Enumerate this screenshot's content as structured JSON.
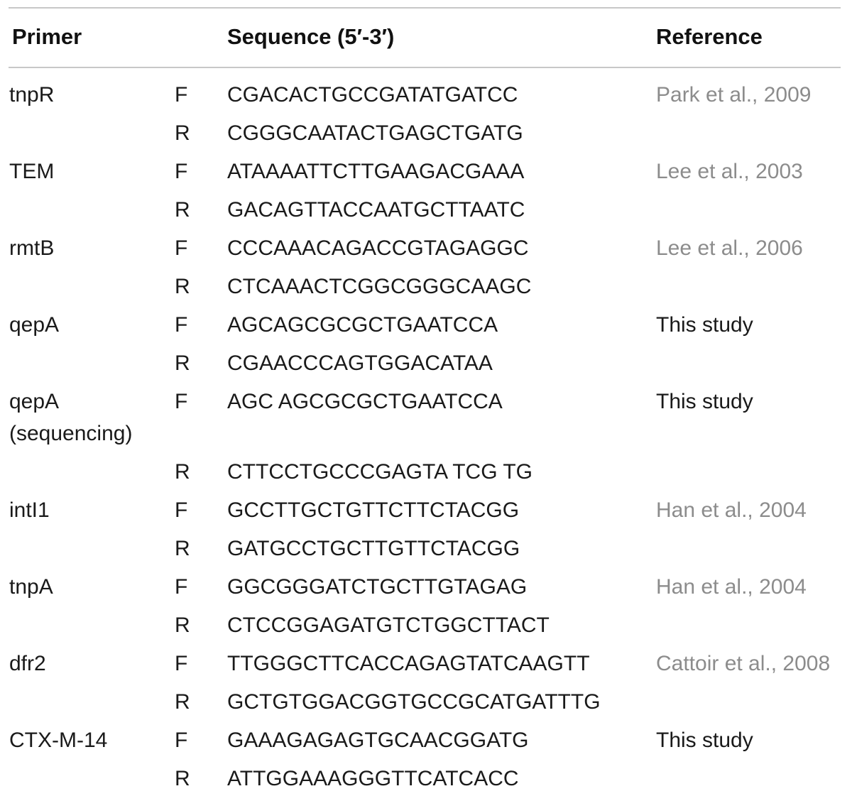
{
  "table": {
    "headers": {
      "primer": "Primer",
      "sequence": "Sequence (5′-3′)",
      "reference": "Reference"
    },
    "rows": [
      {
        "primer": "tnpR",
        "dir": "F",
        "seq": "CGACACTGCCGATATGATCC",
        "ref": "Park et al., 2009",
        "ref_is_citation": true
      },
      {
        "primer": "",
        "dir": "R",
        "seq": "CGGGCAATACTGAGCTGATG",
        "ref": "",
        "ref_is_citation": false
      },
      {
        "primer": "TEM",
        "dir": "F",
        "seq": "ATAAAATTCTTGAAGACGAAA",
        "ref": "Lee et al., 2003",
        "ref_is_citation": true
      },
      {
        "primer": "",
        "dir": "R",
        "seq": "GACAGTTACCAATGCTTAATC",
        "ref": "",
        "ref_is_citation": false
      },
      {
        "primer": "rmtB",
        "dir": "F",
        "seq": "CCCAAACAGACCGTAGAGGC",
        "ref": "Lee et al., 2006",
        "ref_is_citation": true
      },
      {
        "primer": "",
        "dir": "R",
        "seq": "CTCAAACTCGGCGGGCAAGC",
        "ref": "",
        "ref_is_citation": false
      },
      {
        "primer": "qepA",
        "dir": "F",
        "seq": "AGCAGCGCGCTGAATCCA",
        "ref": "This study",
        "ref_is_citation": false
      },
      {
        "primer": "",
        "dir": "R",
        "seq": "CGAACCCAGTGGACATAA",
        "ref": "",
        "ref_is_citation": false
      },
      {
        "primer": "qepA",
        "primer2": "(sequencing)",
        "dir": "F",
        "seq": "AGC AGCGCGCTGAATCCA",
        "ref": "This study",
        "ref_is_citation": false
      },
      {
        "primer": "",
        "dir": "R",
        "seq": "CTTCCTGCCCGAGTA TCG TG",
        "ref": "",
        "ref_is_citation": false
      },
      {
        "primer": "intI1",
        "dir": "F",
        "seq": "GCCTTGCTGTTCTTCTACGG",
        "ref": "Han et al., 2004",
        "ref_is_citation": true
      },
      {
        "primer": "",
        "dir": "R",
        "seq": "GATGCCTGCTTGTTCTACGG",
        "ref": "",
        "ref_is_citation": false
      },
      {
        "primer": "tnpA",
        "dir": "F",
        "seq": "GGCGGGATCTGCTTGTAGAG",
        "ref": "Han et al., 2004",
        "ref_is_citation": true
      },
      {
        "primer": "",
        "dir": "R",
        "seq": "CTCCGGAGATGTCTGGCTTACT",
        "ref": "",
        "ref_is_citation": false
      },
      {
        "primer": "dfr2",
        "dir": "F",
        "seq": "TTGGGCTTCACCAGAGTATCAAGTT",
        "ref": "Cattoir et al., 2008",
        "ref_is_citation": true
      },
      {
        "primer": "",
        "dir": "R",
        "seq": "GCTGTGGACGGTGCCGCATGATTTG",
        "ref": "",
        "ref_is_citation": false
      },
      {
        "primer": "CTX-M-14",
        "dir": "F",
        "seq": "GAAAGAGAGTGCAACGGATG",
        "ref": "This study",
        "ref_is_citation": false
      },
      {
        "primer": "",
        "dir": "R",
        "seq": "ATTGGAAAGGGTTCATCACC",
        "ref": "",
        "ref_is_citation": false
      }
    ]
  },
  "colors": {
    "text": "#1a1a1a",
    "citation": "#8c8c8c",
    "rule": "#c8c8c8"
  }
}
